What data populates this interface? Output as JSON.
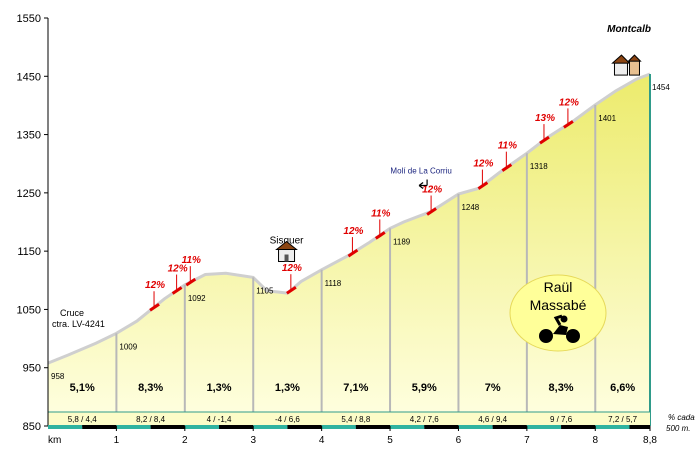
{
  "chart_data": {
    "type": "area",
    "title": "Montcalb",
    "xlabel": "km",
    "ylabel": "",
    "xlim": [
      0,
      8.8
    ],
    "ylim": [
      850,
      1550
    ],
    "y_ticks": [
      850,
      950,
      1050,
      1150,
      1250,
      1350,
      1450,
      1550
    ],
    "x_ticks": [
      "1",
      "2",
      "3",
      "4",
      "5",
      "6",
      "7",
      "8",
      "8,8"
    ],
    "x_tick_values": [
      1,
      2,
      3,
      4,
      5,
      6,
      7,
      8,
      8.8
    ],
    "profile": {
      "x": [
        0,
        0.3,
        0.7,
        1.0,
        1.3,
        1.7,
        2.0,
        2.3,
        2.6,
        3.0,
        3.2,
        3.5,
        3.7,
        4.0,
        4.4,
        4.7,
        5.0,
        5.2,
        5.6,
        6.0,
        6.3,
        6.6,
        7.0,
        7.3,
        7.7,
        8.0,
        8.3,
        8.6,
        8.8
      ],
      "y": [
        958,
        972,
        992,
        1009,
        1030,
        1068,
        1092,
        1110,
        1112,
        1105,
        1082,
        1078,
        1098,
        1118,
        1143,
        1165,
        1189,
        1200,
        1218,
        1248,
        1258,
        1285,
        1318,
        1345,
        1375,
        1401,
        1425,
        1445,
        1454
      ]
    },
    "point_labels": [
      {
        "x": 0,
        "label": "958"
      },
      {
        "x": 1,
        "label": "1009"
      },
      {
        "x": 2,
        "label": "1092"
      },
      {
        "x": 3,
        "label": "1105"
      },
      {
        "x": 4,
        "label": "1118"
      },
      {
        "x": 5,
        "label": "1189"
      },
      {
        "x": 6,
        "label": "1248"
      },
      {
        "x": 7,
        "label": "1318"
      },
      {
        "x": 8,
        "label": "1401"
      },
      {
        "x": 8.8,
        "label": "1454"
      }
    ],
    "segment_gradients": [
      "5,1%",
      "8,3%",
      "1,3%",
      "1,3%",
      "7,1%",
      "5,9%",
      "7%",
      "8,3%",
      "6,6%"
    ],
    "half_km_gradients": [
      "5,8  /  4,4",
      "8,2  /  8,4",
      "4  /  -1,4",
      "-4  /  6,6",
      "5,4  /  8,8",
      "4,2  /  7,6",
      "4,6  /  9,4",
      "9  /  7,6",
      "7,2  /  5,7"
    ],
    "steep_markers": [
      {
        "x": 1.55,
        "y": 1052,
        "label": "12%"
      },
      {
        "x": 1.88,
        "y": 1078,
        "label": "12%"
      },
      {
        "x": 2.08,
        "y": 1098,
        "label": "11%"
      },
      {
        "x": 3.55,
        "y": 1080,
        "label": "12%"
      },
      {
        "x": 4.45,
        "y": 1147,
        "label": "12%"
      },
      {
        "x": 4.85,
        "y": 1178,
        "label": "11%"
      },
      {
        "x": 5.6,
        "y": 1218,
        "label": "12%"
      },
      {
        "x": 6.35,
        "y": 1262,
        "label": "12%"
      },
      {
        "x": 6.7,
        "y": 1293,
        "label": "11%"
      },
      {
        "x": 7.25,
        "y": 1340,
        "label": "13%"
      },
      {
        "x": 7.6,
        "y": 1367,
        "label": "12%"
      }
    ],
    "places": [
      {
        "x": 3.75,
        "label": "Sisquer"
      },
      {
        "x": 5.6,
        "label": "Molí de La Corriu"
      },
      {
        "x": 8.5,
        "label": "Montcalb"
      }
    ],
    "start_note": [
      "Cruce",
      "ctra. LV-4241"
    ],
    "footnote": [
      "% cada",
      "500 m."
    ],
    "author": [
      "Raül",
      "Massabé"
    ],
    "colors": {
      "fill_top": "#eef07e",
      "fill_bottom": "#ffffdc",
      "profile_line": "#cfcfcf",
      "steep": "#e00000",
      "teal": "#2f9b8a",
      "badge": "#ffff99"
    },
    "grid": false
  }
}
